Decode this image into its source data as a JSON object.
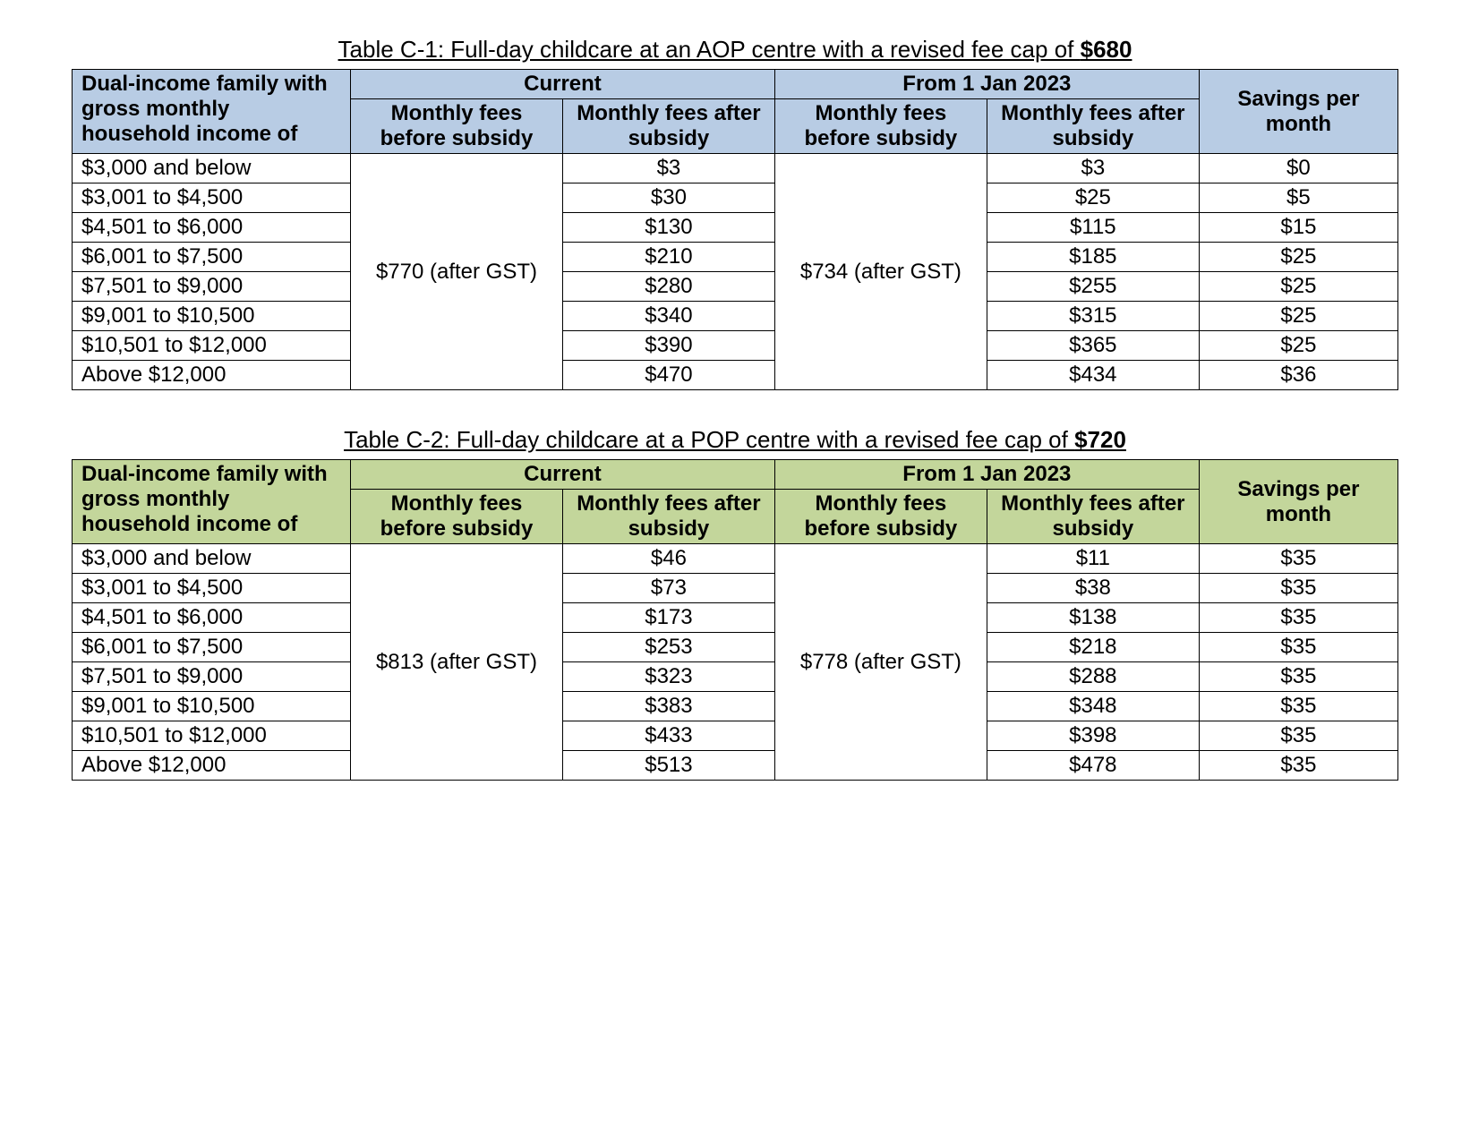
{
  "tables": [
    {
      "theme": "blue",
      "title_pre": "Table C-1: Full-day childcare at an AOP centre with a revised fee cap of ",
      "title_bold": "$680",
      "row_header": "Dual-income family with gross monthly household income of",
      "period_current": "Current",
      "period_future": "From 1 Jan 2023",
      "sub_before": "Monthly fees before subsidy",
      "sub_after": "Monthly fees after subsidy",
      "sub_savings": "Savings per month",
      "before_current": "$770 (after GST)",
      "before_future": "$734 (after GST)",
      "rows": [
        {
          "income": "$3,000 and below",
          "cur_after": "$3",
          "fut_after": "$3",
          "sav": "$0"
        },
        {
          "income": "$3,001 to $4,500",
          "cur_after": "$30",
          "fut_after": "$25",
          "sav": "$5"
        },
        {
          "income": "$4,501 to $6,000",
          "cur_after": "$130",
          "fut_after": "$115",
          "sav": "$15"
        },
        {
          "income": "$6,001 to $7,500",
          "cur_after": "$210",
          "fut_after": "$185",
          "sav": "$25"
        },
        {
          "income": "$7,501 to $9,000",
          "cur_after": "$280",
          "fut_after": "$255",
          "sav": "$25"
        },
        {
          "income": "$9,001 to $10,500",
          "cur_after": "$340",
          "fut_after": "$315",
          "sav": "$25"
        },
        {
          "income": "$10,501 to $12,000",
          "cur_after": "$390",
          "fut_after": "$365",
          "sav": "$25"
        },
        {
          "income": "Above $12,000",
          "cur_after": "$470",
          "fut_after": "$434",
          "sav": "$36"
        }
      ]
    },
    {
      "theme": "green",
      "title_pre": "Table C-2: Full-day childcare at a POP centre with a revised fee cap of ",
      "title_bold": "$720",
      "row_header": "Dual-income family with gross monthly household income of",
      "period_current": "Current",
      "period_future": "From 1 Jan 2023",
      "sub_before": "Monthly fees before subsidy",
      "sub_after": "Monthly fees after subsidy",
      "sub_savings": "Savings per month",
      "before_current": "$813 (after GST)",
      "before_future": "$778 (after GST)",
      "rows": [
        {
          "income": "$3,000 and below",
          "cur_after": "$46",
          "fut_after": "$11",
          "sav": "$35"
        },
        {
          "income": "$3,001 to $4,500",
          "cur_after": "$73",
          "fut_after": "$38",
          "sav": "$35"
        },
        {
          "income": "$4,501 to $6,000",
          "cur_after": "$173",
          "fut_after": "$138",
          "sav": "$35"
        },
        {
          "income": "$6,001 to $7,500",
          "cur_after": "$253",
          "fut_after": "$218",
          "sav": "$35"
        },
        {
          "income": "$7,501 to $9,000",
          "cur_after": "$323",
          "fut_after": "$288",
          "sav": "$35"
        },
        {
          "income": "$9,001 to $10,500",
          "cur_after": "$383",
          "fut_after": "$348",
          "sav": "$35"
        },
        {
          "income": "$10,501 to $12,000",
          "cur_after": "$433",
          "fut_after": "$398",
          "sav": "$35"
        },
        {
          "income": "Above $12,000",
          "cur_after": "$513",
          "fut_after": "$478",
          "sav": "$35"
        }
      ]
    }
  ]
}
